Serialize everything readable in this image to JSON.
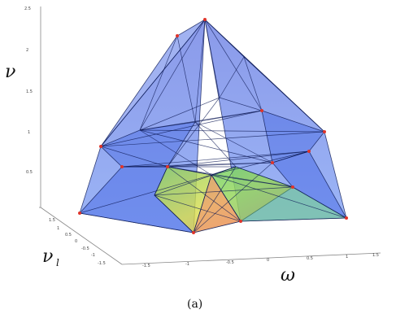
{
  "chart_data": {
    "type": "polyhedron-3d",
    "axes": {
      "x": {
        "label": "ω",
        "ticks": [
          "-1.5",
          "-1",
          "-0.5",
          "0",
          "0.5",
          "1",
          "1.5"
        ]
      },
      "y": {
        "label": "ν",
        "sublabel": "l",
        "ticks": [
          "1.5",
          "1",
          "0.5",
          "0",
          "-0.5",
          "-1",
          "-1.5"
        ]
      },
      "z": {
        "label": "ν",
        "ticks": [
          "2.5",
          "2",
          "1.5",
          "1",
          "0.5"
        ]
      }
    },
    "caption": "(a)",
    "colors": {
      "face_blue": "#2f55e0",
      "face_green": "#5fd36a",
      "face_yellow": "#d9dc4a",
      "face_orange": "#f08a62",
      "edge": "#0d1a55",
      "vertex": "#e0342a"
    }
  }
}
